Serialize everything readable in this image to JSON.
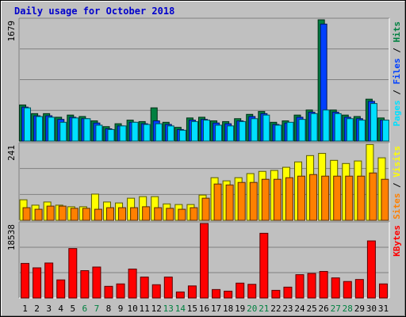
{
  "chart_data": {
    "type": "bar",
    "title": "Daily usage for October 2018",
    "days": [
      "1",
      "2",
      "3",
      "4",
      "5",
      "6",
      "7",
      "8",
      "9",
      "10",
      "11",
      "12",
      "13",
      "14",
      "15",
      "16",
      "17",
      "18",
      "19",
      "20",
      "21",
      "22",
      "23",
      "24",
      "25",
      "26",
      "27",
      "28",
      "29",
      "30",
      "31"
    ],
    "weekend_days": [
      6,
      7,
      13,
      14,
      20,
      21,
      27,
      28
    ],
    "colors": {
      "background": "#c0c0c0",
      "hits": "#008040",
      "files": "#0040ff",
      "pages": "#00e0ff",
      "visits": "#ffff00",
      "sites": "#ff8000",
      "kbytes": "#ff0000",
      "weekday_label": "#000000",
      "weekend_label": "#008040",
      "title": "#0000cc"
    },
    "panels": [
      {
        "id": "hits-files-pages",
        "ymax_label": "1679",
        "ymax": 1679,
        "legend": [
          {
            "text": "Pages",
            "color": "#00e0ff"
          },
          {
            "text": " / ",
            "color": "#000000"
          },
          {
            "text": "Files",
            "color": "#0040ff"
          },
          {
            "text": " / ",
            "color": "#000000"
          },
          {
            "text": "Hits",
            "color": "#008040"
          }
        ],
        "series": [
          {
            "name": "Hits",
            "color": "#008040",
            "values": [
              500,
              380,
              380,
              330,
              360,
              340,
              280,
              200,
              240,
              290,
              270,
              460,
              260,
              190,
              320,
              330,
              280,
              270,
              310,
              370,
              410,
              260,
              280,
              360,
              430,
              1679,
              430,
              360,
              340,
              580,
              320
            ]
          },
          {
            "name": "Files",
            "color": "#0040ff",
            "values": [
              470,
              350,
              350,
              300,
              330,
              310,
              250,
              170,
              210,
              260,
              240,
              280,
              230,
              160,
              290,
              300,
              250,
              240,
              280,
              340,
              380,
              230,
              250,
              330,
              400,
              1620,
              400,
              330,
              310,
              550,
              290
            ]
          },
          {
            "name": "Pages",
            "color": "#00e0ff",
            "values": [
              460,
              340,
              330,
              260,
              320,
              310,
              220,
              160,
              210,
              260,
              230,
              240,
              210,
              150,
              270,
              290,
              220,
              210,
              270,
              310,
              360,
              220,
              260,
              300,
              380,
              430,
              380,
              310,
              290,
              520,
              290
            ]
          }
        ]
      },
      {
        "id": "visits-sites",
        "ymax_label": "241",
        "ymax": 241,
        "legend": [
          {
            "text": "Sites",
            "color": "#ff8000"
          },
          {
            "text": " / ",
            "color": "#000000"
          },
          {
            "text": "Visits",
            "color": "#ffff00"
          }
        ],
        "series": [
          {
            "name": "Visits",
            "color": "#ffff00",
            "values": [
              65,
              48,
              58,
              48,
              43,
              43,
              83,
              58,
              55,
              70,
              75,
              75,
              52,
              50,
              50,
              80,
              135,
              125,
              135,
              148,
              155,
              158,
              168,
              185,
              205,
              212,
              190,
              180,
              188,
              240,
              198
            ]
          },
          {
            "name": "Sites",
            "color": "#ff8000",
            "values": [
              40,
              35,
              45,
              45,
              38,
              38,
              35,
              40,
              40,
              40,
              43,
              40,
              38,
              35,
              40,
              70,
              115,
              112,
              120,
              120,
              130,
              130,
              135,
              140,
              145,
              140,
              140,
              140,
              140,
              150,
              130
            ]
          }
        ]
      },
      {
        "id": "kbytes",
        "ymax_label": "18538",
        "ymax": 18538,
        "legend": [
          {
            "text": "KBytes",
            "color": "#ff0000"
          }
        ],
        "series": [
          {
            "name": "KBytes",
            "color": "#ff0000",
            "values": [
              8600,
              7500,
              8700,
              4500,
              12300,
              6800,
              7700,
              2900,
              3500,
              7200,
              5200,
              3300,
              5200,
              1500,
              3000,
              18538,
              2100,
              1700,
              3700,
              3400,
              16100,
              1900,
              2700,
              5800,
              6100,
              6600,
              5000,
              4100,
              4600,
              14200,
              3500
            ]
          }
        ]
      }
    ]
  }
}
